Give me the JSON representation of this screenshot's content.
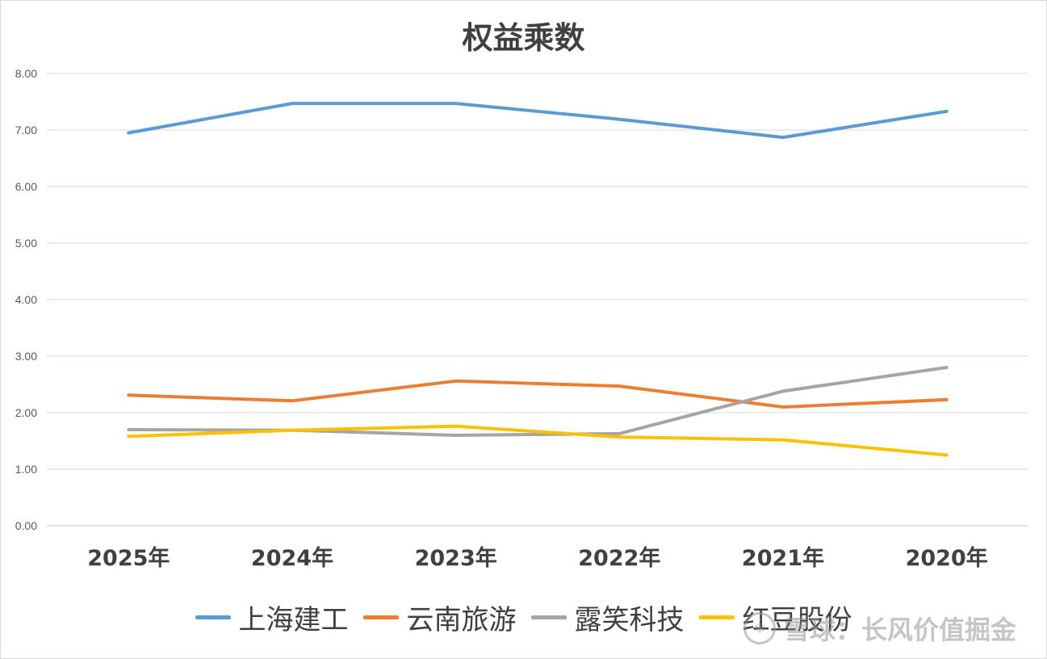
{
  "chart_data": {
    "type": "line",
    "title": "权益乘数",
    "xlabel": "",
    "ylabel": "",
    "categories": [
      "2025年",
      "2024年",
      "2023年",
      "2022年",
      "2021年",
      "2020年"
    ],
    "ylim": [
      0,
      8
    ],
    "yticks": [
      "0.00",
      "1.00",
      "2.00",
      "3.00",
      "4.00",
      "5.00",
      "6.00",
      "7.00",
      "8.00"
    ],
    "grid": true,
    "legend_position": "bottom",
    "series": [
      {
        "name": "上海建工",
        "color": "#5B9BD5",
        "values": [
          6.95,
          7.47,
          7.47,
          7.19,
          6.87,
          7.33
        ]
      },
      {
        "name": "云南旅游",
        "color": "#ED7D31",
        "values": [
          2.31,
          2.21,
          2.56,
          2.47,
          2.1,
          2.23
        ]
      },
      {
        "name": "露笑科技",
        "color": "#A5A5A5",
        "values": [
          1.7,
          1.69,
          1.6,
          1.63,
          2.38,
          2.8
        ]
      },
      {
        "name": "红豆股份",
        "color": "#FFC000",
        "values": [
          1.58,
          1.69,
          1.76,
          1.57,
          1.52,
          1.25
        ]
      }
    ]
  },
  "watermark": {
    "icon": "snowball-logo-icon",
    "text": "雪球：长风价值掘金"
  }
}
